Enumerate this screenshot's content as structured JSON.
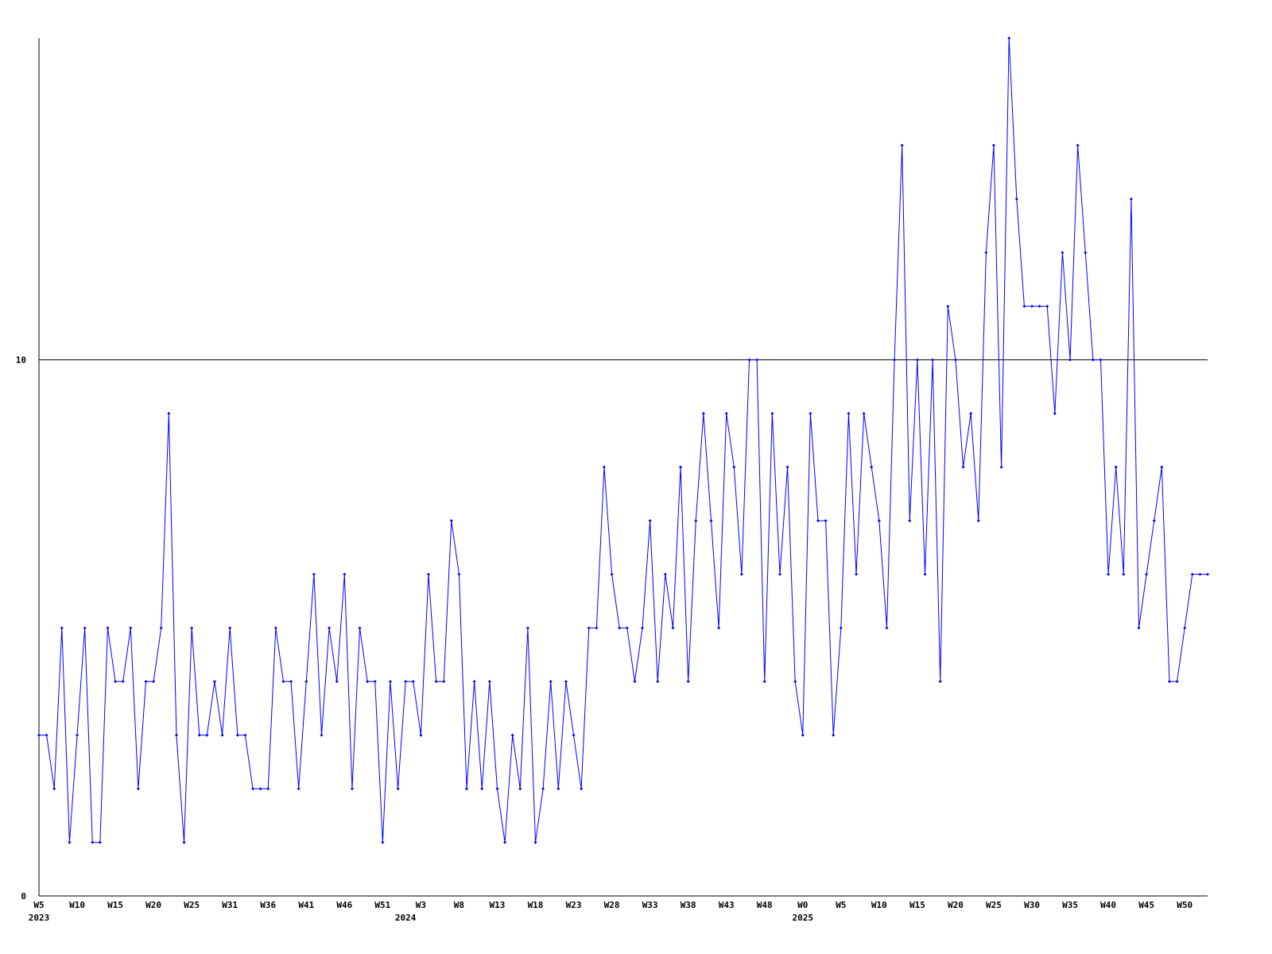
{
  "chart_data": {
    "type": "line",
    "color": "#0000ff",
    "grid": true,
    "ylim": [
      0,
      16
    ],
    "yticks": [
      0,
      10
    ],
    "categories": [
      "W5",
      null,
      null,
      null,
      null,
      "W10",
      null,
      null,
      null,
      null,
      "W15",
      null,
      null,
      null,
      null,
      "W20",
      null,
      null,
      null,
      null,
      "W25",
      null,
      null,
      null,
      null,
      "W31",
      null,
      null,
      null,
      null,
      "W36",
      null,
      null,
      null,
      null,
      "W41",
      null,
      null,
      null,
      null,
      "W46",
      null,
      null,
      null,
      null,
      "W51",
      null,
      null,
      null,
      null,
      "W3",
      null,
      null,
      null,
      null,
      "W8",
      null,
      null,
      null,
      null,
      "W13",
      null,
      null,
      null,
      null,
      "W18",
      null,
      null,
      null,
      null,
      "W23",
      null,
      null,
      null,
      null,
      "W28",
      null,
      null,
      null,
      null,
      "W33",
      null,
      null,
      null,
      null,
      "W38",
      null,
      null,
      null,
      null,
      "W43",
      null,
      null,
      null,
      null,
      "W48",
      null,
      null,
      null,
      null,
      "W0",
      null,
      null,
      null,
      null,
      "W5",
      null,
      null,
      null,
      null,
      "W10",
      null,
      null,
      null,
      null,
      "W15",
      null,
      null,
      null,
      null,
      "W20",
      null,
      null,
      null,
      null,
      "W25",
      null,
      null,
      null,
      null,
      "W30",
      null,
      null,
      null,
      null,
      "W35",
      null,
      null,
      null,
      null,
      "W40",
      null,
      null,
      null,
      null,
      "W45",
      null,
      null,
      null,
      null,
      "W50",
      null,
      null,
      null
    ],
    "year_labels": [
      "2023",
      null,
      null,
      null,
      null,
      null,
      null,
      null,
      null,
      null,
      null,
      null,
      null,
      null,
      null,
      null,
      null,
      null,
      null,
      null,
      null,
      null,
      null,
      null,
      null,
      null,
      null,
      null,
      null,
      null,
      null,
      null,
      null,
      null,
      null,
      null,
      null,
      null,
      null,
      null,
      null,
      null,
      null,
      null,
      null,
      null,
      null,
      null,
      "2024",
      null,
      null,
      null,
      null,
      null,
      null,
      null,
      null,
      null,
      null,
      null,
      null,
      null,
      null,
      null,
      null,
      null,
      null,
      null,
      null,
      null,
      null,
      null,
      null,
      null,
      null,
      null,
      null,
      null,
      null,
      null,
      null,
      null,
      null,
      null,
      null,
      null,
      null,
      null,
      null,
      null,
      null,
      null,
      null,
      null,
      null,
      null,
      null,
      null,
      null,
      null,
      "2025",
      null,
      null,
      null,
      null,
      null,
      null,
      null,
      null,
      null,
      null,
      null,
      null,
      null,
      null,
      null,
      null,
      null,
      null,
      null,
      null,
      null,
      null,
      null,
      null,
      null,
      null,
      null,
      null,
      null,
      null,
      null,
      null,
      null,
      null,
      null,
      null,
      null,
      null,
      null,
      null,
      null,
      null,
      null,
      null,
      null,
      null,
      null,
      null,
      null,
      null,
      null,
      null
    ],
    "values": [
      3,
      3,
      2,
      5,
      1,
      3,
      5,
      1,
      1,
      5,
      4,
      4,
      5,
      2,
      4,
      4,
      5,
      9,
      3,
      1,
      5,
      3,
      3,
      4,
      3,
      5,
      3,
      3,
      2,
      2,
      2,
      5,
      4,
      4,
      2,
      4,
      6,
      3,
      5,
      4,
      6,
      2,
      5,
      4,
      4,
      1,
      4,
      2,
      4,
      4,
      3,
      6,
      4,
      4,
      7,
      6,
      2,
      4,
      2,
      4,
      2,
      1,
      3,
      2,
      5,
      1,
      2,
      4,
      2,
      4,
      3,
      2,
      5,
      5,
      8,
      6,
      5,
      5,
      4,
      5,
      7,
      4,
      6,
      5,
      8,
      4,
      7,
      9,
      7,
      5,
      9,
      8,
      6,
      10,
      10,
      4,
      9,
      6,
      8,
      4,
      3,
      9,
      7,
      7,
      3,
      5,
      9,
      6,
      9,
      8,
      7,
      5,
      10,
      14,
      7,
      10,
      6,
      10,
      4,
      11,
      10,
      8,
      9,
      7,
      12,
      14,
      8,
      16,
      13,
      11,
      11,
      11,
      11,
      9,
      12,
      10,
      14,
      12,
      10,
      10,
      6,
      8,
      6,
      13,
      5,
      6,
      7,
      8,
      4,
      4,
      5,
      6,
      6,
      6
    ]
  }
}
